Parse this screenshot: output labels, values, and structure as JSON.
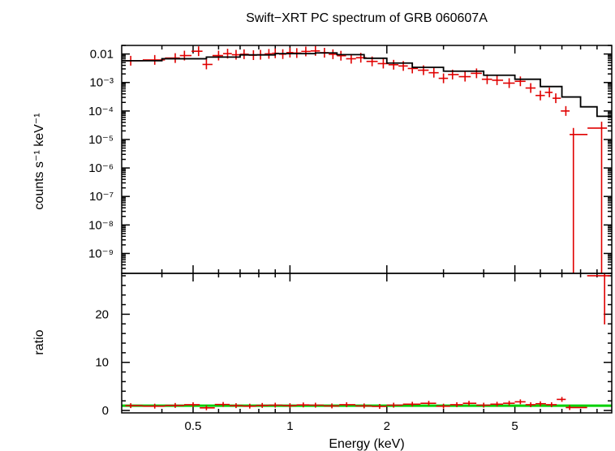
{
  "chart_data": [
    {
      "type": "scatter",
      "title": "Swift−XRT PC spectrum of GRB 060607A",
      "ylabel": "counts s⁻¹ keV⁻¹",
      "xscale": "log",
      "yscale": "log",
      "xlim": [
        0.3,
        10
      ],
      "ylim": [
        2e-10,
        0.02
      ],
      "ytick_labels": [
        {
          "value": 0.01,
          "label": "0.01"
        },
        {
          "value": 0.001,
          "label": "10⁻³"
        },
        {
          "value": 0.0001,
          "label": "10⁻⁴"
        },
        {
          "value": 1e-05,
          "label": "10⁻⁵"
        },
        {
          "value": 1e-06,
          "label": "10⁻⁶"
        },
        {
          "value": 1e-07,
          "label": "10⁻⁷"
        },
        {
          "value": 1e-08,
          "label": "10⁻⁸"
        },
        {
          "value": 1e-09,
          "label": "10⁻⁹"
        }
      ],
      "series": [
        {
          "style": "data points with error bars",
          "color": "#e00000",
          "points": [
            [
              0.32,
              0.0058
            ],
            [
              0.38,
              0.0062
            ],
            [
              0.44,
              0.0072
            ],
            [
              0.47,
              0.0088
            ],
            [
              0.52,
              0.0125
            ],
            [
              0.55,
              0.0043
            ],
            [
              0.6,
              0.0088
            ],
            [
              0.64,
              0.0103
            ],
            [
              0.68,
              0.0094
            ],
            [
              0.72,
              0.0098
            ],
            [
              0.77,
              0.0091
            ],
            [
              0.81,
              0.0094
            ],
            [
              0.86,
              0.0101
            ],
            [
              0.9,
              0.0106
            ],
            [
              0.95,
              0.0099
            ],
            [
              1.0,
              0.0112
            ],
            [
              1.05,
              0.0108
            ],
            [
              1.12,
              0.0123
            ],
            [
              1.2,
              0.0128
            ],
            [
              1.28,
              0.0111
            ],
            [
              1.36,
              0.0098
            ],
            [
              1.44,
              0.0087
            ],
            [
              1.55,
              0.0068
            ],
            [
              1.66,
              0.0074
            ],
            [
              1.8,
              0.0055
            ],
            [
              1.95,
              0.0046
            ],
            [
              2.1,
              0.0042
            ],
            [
              2.25,
              0.0038
            ],
            [
              2.4,
              0.0031
            ],
            [
              2.6,
              0.0027
            ],
            [
              2.8,
              0.0022
            ],
            [
              3.0,
              0.0014
            ],
            [
              3.2,
              0.0019
            ],
            [
              3.5,
              0.0016
            ],
            [
              3.8,
              0.0021
            ],
            [
              4.1,
              0.0013
            ],
            [
              4.4,
              0.0012
            ],
            [
              4.8,
              0.00095
            ],
            [
              5.2,
              0.0011
            ],
            [
              5.6,
              0.00064
            ],
            [
              6.0,
              0.00035
            ],
            [
              6.4,
              0.00045
            ],
            [
              6.7,
              0.00028
            ],
            [
              7.2,
              0.0001
            ],
            [
              7.6,
              1.5e-05
            ],
            [
              9.3,
              2.5e-05
            ]
          ]
        },
        {
          "style": "model step line",
          "color": "#000000",
          "points": [
            [
              0.3,
              0.0058
            ],
            [
              0.4,
              0.0068
            ],
            [
              0.55,
              0.0078
            ],
            [
              0.7,
              0.0093
            ],
            [
              0.9,
              0.0103
            ],
            [
              1.2,
              0.0109
            ],
            [
              1.4,
              0.0095
            ],
            [
              1.7,
              0.0071
            ],
            [
              2.0,
              0.0048
            ],
            [
              2.4,
              0.0034
            ],
            [
              3.0,
              0.0025
            ],
            [
              4.0,
              0.0018
            ],
            [
              5.0,
              0.0013
            ],
            [
              6.0,
              0.00072
            ],
            [
              7.0,
              0.00031
            ],
            [
              8.0,
              0.00014
            ],
            [
              9.0,
              6.5e-05
            ],
            [
              10.0,
              6.5e-05
            ]
          ]
        }
      ]
    },
    {
      "type": "scatter",
      "xlabel": "Energy (keV)",
      "ylabel": "ratio",
      "xscale": "log",
      "xlim": [
        0.3,
        10
      ],
      "ylim": [
        -0.5,
        28.5
      ],
      "xticks": [
        0.5,
        1,
        2,
        5
      ],
      "xtick_labels": [
        "0.5",
        "1",
        "2",
        "5"
      ],
      "yticks": [
        0,
        10,
        20
      ],
      "ytick_labels": [
        "0",
        "10",
        "20"
      ],
      "series": [
        {
          "style": "data points with error bars",
          "color": "#e00000",
          "points": [
            [
              0.32,
              1.0
            ],
            [
              0.38,
              0.9
            ],
            [
              0.44,
              1.05
            ],
            [
              0.5,
              1.2
            ],
            [
              0.55,
              0.55
            ],
            [
              0.62,
              1.25
            ],
            [
              0.68,
              1.0
            ],
            [
              0.75,
              0.9
            ],
            [
              0.82,
              1.05
            ],
            [
              0.9,
              1.1
            ],
            [
              1.0,
              1.0
            ],
            [
              1.1,
              1.15
            ],
            [
              1.2,
              1.1
            ],
            [
              1.35,
              0.95
            ],
            [
              1.5,
              1.2
            ],
            [
              1.7,
              0.95
            ],
            [
              1.9,
              0.85
            ],
            [
              2.1,
              1.1
            ],
            [
              2.4,
              1.3
            ],
            [
              2.7,
              1.5
            ],
            [
              3.0,
              0.9
            ],
            [
              3.3,
              1.2
            ],
            [
              3.6,
              1.5
            ],
            [
              4.0,
              1.1
            ],
            [
              4.4,
              1.3
            ],
            [
              4.8,
              1.5
            ],
            [
              5.2,
              1.8
            ],
            [
              5.6,
              1.2
            ],
            [
              6.0,
              1.4
            ],
            [
              6.5,
              1.2
            ],
            [
              7.0,
              2.3
            ],
            [
              7.4,
              0.6
            ],
            [
              9.5,
              28.0
            ]
          ]
        },
        {
          "style": "unity reference line",
          "color": "#00d000",
          "points": [
            [
              0.3,
              1
            ],
            [
              10,
              1
            ]
          ]
        }
      ]
    }
  ]
}
